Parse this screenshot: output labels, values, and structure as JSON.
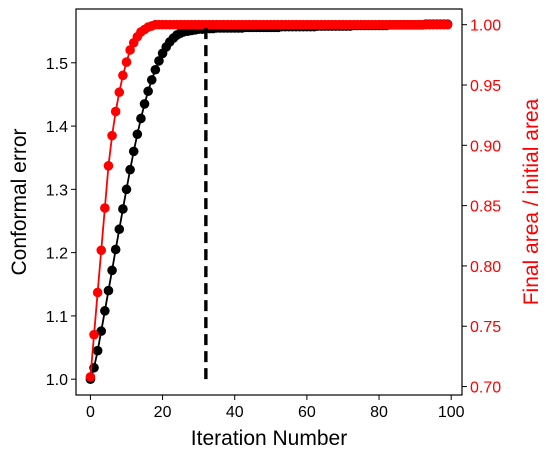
{
  "chart_data": {
    "type": "line",
    "xlabel": "Iteration Number",
    "ylabel": "Conformal error",
    "y2label": "Final area / initial area",
    "xlim": [
      -4,
      103
    ],
    "ylim": [
      0.975,
      1.585
    ],
    "y2lim": [
      0.693,
      1.013
    ],
    "xticks": [
      0,
      20,
      40,
      60,
      80,
      100
    ],
    "yticks": [
      1.0,
      1.1,
      1.2,
      1.3,
      1.4,
      1.5
    ],
    "y2ticks": [
      0.7,
      0.75,
      0.8,
      0.85,
      0.9,
      0.95,
      1.0
    ],
    "xtick_labels": [
      "0",
      "20",
      "40",
      "60",
      "80",
      "100"
    ],
    "ytick_labels": [
      "1.0",
      "1.1",
      "1.2",
      "1.3",
      "1.4",
      "1.5"
    ],
    "y2tick_labels": [
      "0.70",
      "0.75",
      "0.80",
      "0.85",
      "0.90",
      "0.95",
      "1.00"
    ],
    "colors": {
      "conformal": "#000000",
      "area": "#ff0000",
      "right_axis": "#ff0000"
    },
    "vline": {
      "x": 32,
      "y_from": 1.0,
      "y_to": 1.555,
      "style": "dashed",
      "color": "#000000"
    },
    "series": [
      {
        "axis": "left",
        "color": "#000000",
        "x": [
          0,
          1,
          2,
          3,
          4,
          5,
          6,
          7,
          8,
          9,
          10,
          11,
          12,
          13,
          14,
          15,
          16,
          17,
          18,
          19,
          20,
          21,
          22,
          23,
          24,
          25,
          26,
          27,
          28,
          29,
          30,
          31,
          32,
          33,
          34,
          35,
          36,
          37,
          38,
          39,
          40,
          41,
          42,
          43,
          44,
          45,
          46,
          47,
          48,
          49,
          50,
          51,
          52,
          53,
          54,
          55,
          56,
          57,
          58,
          59,
          60,
          61,
          62,
          63,
          64,
          65,
          66,
          67,
          68,
          69,
          70,
          71,
          72,
          73,
          74,
          75,
          76,
          77,
          78,
          79,
          80,
          81,
          82,
          83,
          84,
          85,
          86,
          87,
          88,
          89,
          90,
          91,
          92,
          93,
          94,
          95,
          96,
          97,
          98,
          99
        ],
        "values": [
          1.0,
          1.018,
          1.045,
          1.076,
          1.108,
          1.14,
          1.172,
          1.205,
          1.237,
          1.269,
          1.3,
          1.331,
          1.36,
          1.387,
          1.412,
          1.435,
          1.455,
          1.473,
          1.489,
          1.503,
          1.515,
          1.525,
          1.533,
          1.539,
          1.544,
          1.547,
          1.549,
          1.55,
          1.551,
          1.552,
          1.553,
          1.553,
          1.554,
          1.554,
          1.554,
          1.555,
          1.555,
          1.555,
          1.555,
          1.555,
          1.555,
          1.555,
          1.555,
          1.556,
          1.556,
          1.556,
          1.556,
          1.556,
          1.556,
          1.556,
          1.556,
          1.556,
          1.556,
          1.557,
          1.557,
          1.557,
          1.557,
          1.557,
          1.557,
          1.557,
          1.557,
          1.557,
          1.557,
          1.558,
          1.558,
          1.558,
          1.558,
          1.558,
          1.558,
          1.558,
          1.558,
          1.558,
          1.558,
          1.559,
          1.559,
          1.559,
          1.559,
          1.559,
          1.559,
          1.559,
          1.559,
          1.559,
          1.559,
          1.56,
          1.56,
          1.56,
          1.56,
          1.56,
          1.56,
          1.56,
          1.56,
          1.56,
          1.56,
          1.561,
          1.561,
          1.561,
          1.561,
          1.561,
          1.561,
          1.561
        ]
      },
      {
        "axis": "right",
        "color": "#ff0000",
        "x": [
          0,
          1,
          2,
          3,
          4,
          5,
          6,
          7,
          8,
          9,
          10,
          11,
          12,
          13,
          14,
          15,
          16,
          17,
          18,
          19,
          20,
          21,
          22,
          23,
          24,
          25,
          26,
          27,
          28,
          29,
          30,
          31,
          32,
          33,
          34,
          35,
          36,
          37,
          38,
          39,
          40,
          41,
          42,
          43,
          44,
          45,
          46,
          47,
          48,
          49,
          50,
          51,
          52,
          53,
          54,
          55,
          56,
          57,
          58,
          59,
          60,
          61,
          62,
          63,
          64,
          65,
          66,
          67,
          68,
          69,
          70,
          71,
          72,
          73,
          74,
          75,
          76,
          77,
          78,
          79,
          80,
          81,
          82,
          83,
          84,
          85,
          86,
          87,
          88,
          89,
          90,
          91,
          92,
          93,
          94,
          95,
          96,
          97,
          98,
          99
        ],
        "values": [
          0.708,
          0.743,
          0.778,
          0.813,
          0.848,
          0.883,
          0.908,
          0.928,
          0.944,
          0.958,
          0.969,
          0.979,
          0.985,
          0.99,
          0.994,
          0.996,
          0.998,
          0.999,
          1.0,
          1.0,
          1.0,
          1.0,
          1.0,
          1.0,
          1.0,
          1.0,
          1.0,
          1.0,
          1.0,
          1.0,
          1.0,
          1.0,
          1.0,
          1.0,
          1.0,
          1.0,
          1.0,
          1.0,
          1.0,
          1.0,
          1.0,
          1.0,
          1.0,
          1.0,
          1.0,
          1.0,
          1.0,
          1.0,
          1.0,
          1.0,
          1.0,
          1.0,
          1.0,
          1.0,
          1.0,
          1.0,
          1.0,
          1.0,
          1.0,
          1.0,
          1.0,
          1.0,
          1.0,
          1.0,
          1.0,
          1.0,
          1.0,
          1.0,
          1.0,
          1.0,
          1.0,
          1.0,
          1.0,
          1.0,
          1.0,
          1.0,
          1.0,
          1.0,
          1.0,
          1.0,
          1.0,
          1.0,
          1.0,
          1.0,
          1.0,
          1.0,
          1.0,
          1.0,
          1.0,
          1.0,
          1.0,
          1.0,
          1.0,
          1.0,
          1.0,
          1.0,
          1.0,
          1.0,
          1.0,
          1.0
        ]
      }
    ]
  }
}
